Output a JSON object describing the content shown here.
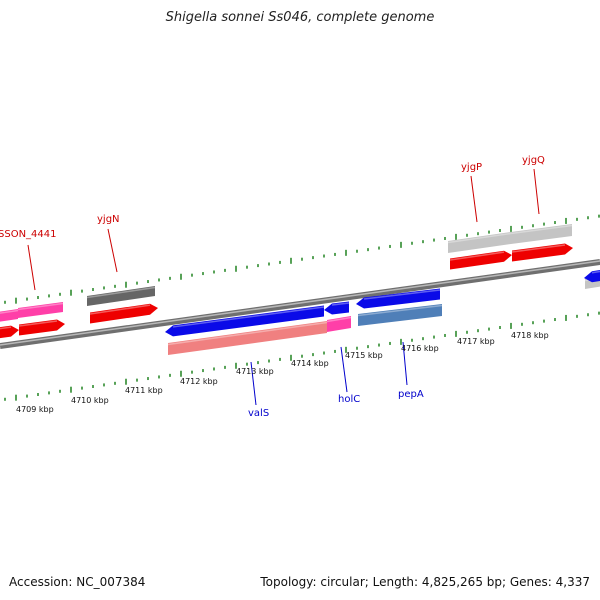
{
  "title": "Shigella sonnei Ss046, complete genome",
  "footer": {
    "accession": "Accession: NC_007384",
    "summary": "Topology: circular; Length: 4,825,265 bp; Genes: 4,337"
  },
  "colors": {
    "backbone": "#8a8a8a",
    "tick": "#2e8b2e",
    "forward_label": "#cc0000",
    "reverse_label": "#0000cc",
    "red_gene": "#ee0000",
    "pink_gene": "#ff3fa8",
    "blue_gene": "#0a0ae8",
    "steel_gene": "#4f7fb8",
    "salmon_gene": "#f08080",
    "gray_gene": "#c4c4c4",
    "dark_gene": "#666666"
  },
  "axis": {
    "unit": "kbp",
    "ticks": [
      {
        "label": "4709 kbp"
      },
      {
        "label": "4710 kbp"
      },
      {
        "label": "4711 kbp"
      },
      {
        "label": "4712 kbp"
      },
      {
        "label": "4713 kbp"
      },
      {
        "label": "4714 kbp"
      },
      {
        "label": "4715 kbp"
      },
      {
        "label": "4716 kbp"
      },
      {
        "label": "4717 kbp"
      },
      {
        "label": "4718 kbp"
      }
    ]
  },
  "gene_labels": [
    {
      "name": "SSON_4441",
      "strand": "forward"
    },
    {
      "name": "yjgN",
      "strand": "forward"
    },
    {
      "name": "yjgP",
      "strand": "forward"
    },
    {
      "name": "yjgQ",
      "strand": "forward"
    },
    {
      "name": "valS",
      "strand": "reverse"
    },
    {
      "name": "holC",
      "strand": "reverse"
    },
    {
      "name": "pepA",
      "strand": "reverse"
    }
  ]
}
